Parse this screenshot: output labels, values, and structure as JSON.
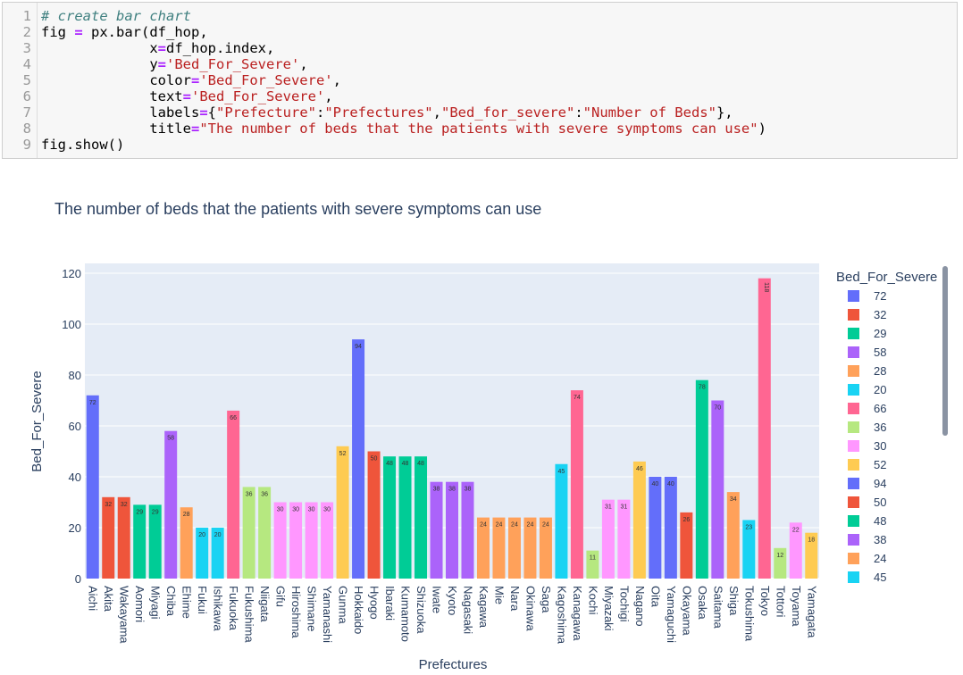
{
  "code_cell": {
    "line_numbers": [
      "1",
      "2",
      "3",
      "4",
      "5",
      "6",
      "7",
      "8",
      "9"
    ],
    "lines": [
      [
        {
          "t": "# create bar chart",
          "c": "cm"
        }
      ],
      [
        {
          "t": "fig ",
          "c": "var"
        },
        {
          "t": "=",
          "c": "op"
        },
        {
          "t": " px.bar(df_hop,",
          "c": "var"
        }
      ],
      [
        {
          "t": "             x",
          "c": "var"
        },
        {
          "t": "=",
          "c": "op"
        },
        {
          "t": "df_hop.index,",
          "c": "var"
        }
      ],
      [
        {
          "t": "             y",
          "c": "var"
        },
        {
          "t": "=",
          "c": "op"
        },
        {
          "t": "'Bed_For_Severe'",
          "c": "str"
        },
        {
          "t": ",",
          "c": "var"
        }
      ],
      [
        {
          "t": "             color",
          "c": "var"
        },
        {
          "t": "=",
          "c": "op"
        },
        {
          "t": "'Bed_For_Severe'",
          "c": "str"
        },
        {
          "t": ",",
          "c": "var"
        }
      ],
      [
        {
          "t": "             text",
          "c": "var"
        },
        {
          "t": "=",
          "c": "op"
        },
        {
          "t": "'Bed_For_Severe'",
          "c": "str"
        },
        {
          "t": ",",
          "c": "var"
        }
      ],
      [
        {
          "t": "             labels",
          "c": "var"
        },
        {
          "t": "=",
          "c": "op"
        },
        {
          "t": "{",
          "c": "var"
        },
        {
          "t": "\"Prefecture\"",
          "c": "str"
        },
        {
          "t": ":",
          "c": "var"
        },
        {
          "t": "\"Prefectures\"",
          "c": "str"
        },
        {
          "t": ",",
          "c": "var"
        },
        {
          "t": "\"Bed_for_severe\"",
          "c": "str"
        },
        {
          "t": ":",
          "c": "var"
        },
        {
          "t": "\"Number of Beds\"",
          "c": "str"
        },
        {
          "t": "},",
          "c": "var"
        }
      ],
      [
        {
          "t": "             title",
          "c": "var"
        },
        {
          "t": "=",
          "c": "op"
        },
        {
          "t": "\"The number of beds that the patients with severe symptoms can use\"",
          "c": "str"
        },
        {
          "t": ")",
          "c": "var"
        }
      ],
      [
        {
          "t": "fig.show()",
          "c": "var"
        }
      ]
    ]
  },
  "chart_data": {
    "type": "bar",
    "title": "The number of beds that the patients with severe symptoms can use",
    "xlabel": "Prefectures",
    "ylabel": "Bed_For_Severe",
    "ylim": [
      0,
      120
    ],
    "yticks": [
      0,
      20,
      40,
      60,
      80,
      100,
      120
    ],
    "grid": true,
    "legend_title": "Bed_For_Severe",
    "legend_placement": "right",
    "categories": [
      "Aichi",
      "Akita",
      "Wakayama",
      "Aomori",
      "Miyagi",
      "Chiba",
      "Ehime",
      "Fukui",
      "Ishikawa",
      "Fukuoka",
      "Fukushima",
      "Niigata",
      "Gifu",
      "Hiroshima",
      "Shimane",
      "Yamanashi",
      "Gunma",
      "Hokkaido",
      "Hyogo",
      "Ibaraki",
      "Kumamoto",
      "Shizuoka",
      "Iwate",
      "Kyoto",
      "Nagasaki",
      "Kagawa",
      "Mie",
      "Nara",
      "Okinawa",
      "Saga",
      "Kagoshima",
      "Kanagawa",
      "Kochi",
      "Miyazaki",
      "Tochigi",
      "Nagano",
      "Oita",
      "Yamaguchi",
      "Okayama",
      "Osaka",
      "Saitama",
      "Shiga",
      "Tokushima",
      "Tokyo",
      "Tottori",
      "Toyama",
      "Yamagata"
    ],
    "values": [
      72,
      32,
      32,
      29,
      29,
      58,
      28,
      20,
      20,
      66,
      36,
      36,
      30,
      30,
      30,
      30,
      52,
      94,
      50,
      48,
      48,
      48,
      38,
      38,
      38,
      24,
      24,
      24,
      24,
      24,
      45,
      74,
      11,
      31,
      31,
      46,
      40,
      40,
      26,
      78,
      70,
      34,
      23,
      118,
      12,
      22,
      18
    ],
    "bar_labels": [
      "72",
      "32",
      "32",
      "29",
      "29",
      "58",
      "28",
      "20",
      "20",
      "66",
      "36",
      "36",
      "30",
      "30",
      "30",
      "30",
      "52",
      "94",
      "50",
      "48",
      "48",
      "48",
      "38",
      "38",
      "38",
      "24",
      "24",
      "24",
      "24",
      "24",
      "45",
      "74",
      "11",
      "31",
      "31",
      "46",
      "40",
      "40",
      "26",
      "78",
      "70",
      "34",
      "23",
      "118",
      "12",
      "22",
      "18"
    ],
    "legend_values": [
      "72",
      "32",
      "29",
      "58",
      "28",
      "20",
      "66",
      "36",
      "30",
      "52",
      "94",
      "50",
      "48",
      "38",
      "24",
      "45"
    ],
    "legend_colors": [
      "#636efa",
      "#EF553B",
      "#00cc96",
      "#ab63fa",
      "#FFA15A",
      "#19d3f3",
      "#FF6692",
      "#B6E880",
      "#FF97FF",
      "#FECB52",
      "#636efa",
      "#EF553B",
      "#00cc96",
      "#ab63fa",
      "#FFA15A",
      "#19d3f3"
    ],
    "palette": [
      "#636efa",
      "#EF553B",
      "#00cc96",
      "#ab63fa",
      "#FFA15A",
      "#19d3f3",
      "#FF6692",
      "#B6E880",
      "#FF97FF",
      "#FECB52"
    ],
    "color_order": [
      "72",
      "32",
      "29",
      "58",
      "28",
      "20",
      "66",
      "36",
      "30",
      "52",
      "94",
      "50",
      "48",
      "38",
      "24",
      "45",
      "74",
      "11",
      "31",
      "46",
      "40",
      "26",
      "78",
      "70",
      "34",
      "23",
      "118",
      "12",
      "22",
      "18"
    ],
    "plot_bg": "#e5ecf6"
  }
}
